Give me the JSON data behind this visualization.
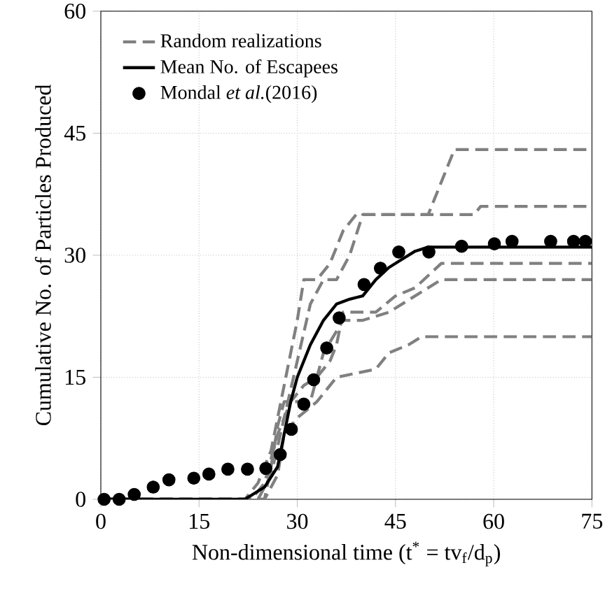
{
  "chart_data": {
    "type": "line",
    "xlabel": "Non-dimensional time (t$^{*}$ = tv$_{f}$/d$_{p}$)",
    "ylabel": "Cumulative No. of Particles Produced",
    "xlim": [
      0,
      75
    ],
    "ylim": [
      0,
      60
    ],
    "xticks": [
      0,
      15,
      30,
      45,
      60,
      75
    ],
    "yticks": [
      0,
      15,
      30,
      45,
      60
    ],
    "grid": true,
    "legend": "top left",
    "series": [
      {
        "name": "Random realizations",
        "color": "#808080",
        "line_style": "dashed",
        "marker": "none",
        "x": [
          0,
          22,
          24,
          26,
          28,
          30,
          31,
          33,
          35,
          37,
          39,
          50,
          52,
          54,
          75
        ],
        "values": [
          0,
          0,
          2,
          6,
          14,
          22,
          27,
          27,
          29,
          33,
          35,
          35,
          39,
          43,
          43
        ]
      },
      {
        "color": "#808080",
        "line_style": "dashed",
        "marker": "none",
        "x": [
          0,
          24,
          26,
          28,
          30,
          32,
          34,
          36,
          38,
          40,
          57,
          58,
          75
        ],
        "values": [
          0,
          0,
          3,
          10,
          17,
          24,
          27,
          27,
          30,
          35,
          35,
          36,
          36
        ]
      },
      {
        "color": "#808080",
        "line_style": "dashed",
        "marker": "none",
        "x": [
          0,
          23,
          25,
          27,
          29,
          31,
          33,
          35,
          36,
          37,
          42,
          45,
          48,
          52,
          75
        ],
        "values": [
          0,
          0,
          2,
          8,
          12,
          14,
          15,
          17,
          19,
          23,
          23,
          25,
          26,
          29,
          29
        ]
      },
      {
        "color": "#808080",
        "line_style": "dashed",
        "marker": "none",
        "x": [
          0,
          25,
          26,
          27,
          28,
          32,
          34,
          37,
          40,
          44,
          48,
          52,
          75
        ],
        "values": [
          0,
          0,
          4,
          9,
          12,
          12,
          18,
          22,
          22,
          23,
          25,
          27,
          27
        ]
      },
      {
        "color": "#808080",
        "line_style": "dashed",
        "marker": "none",
        "x": [
          0,
          25,
          27,
          28,
          30,
          33,
          36,
          42,
          44,
          47,
          49,
          75
        ],
        "values": [
          0,
          0,
          3,
          8,
          10,
          12,
          15,
          16,
          18,
          19,
          20,
          20
        ]
      },
      {
        "name": "Mean No. of Escapees",
        "color": "#000000",
        "line_style": "solid",
        "marker": "none",
        "x": [
          0,
          22,
          25,
          27,
          28,
          29,
          30,
          32,
          34,
          36,
          38,
          40,
          42,
          44,
          46,
          48,
          50,
          53,
          75
        ],
        "values": [
          0,
          0,
          1.5,
          4,
          8,
          12,
          15,
          19,
          22,
          24,
          24.6,
          25,
          27,
          28.5,
          29.5,
          30.5,
          31,
          31,
          31
        ]
      },
      {
        "type": "scatter",
        "name": "Mondal *et al.*(2016)",
        "color": "#000000",
        "marker": "circle",
        "x": [
          0.5,
          2.8,
          5.1,
          8.0,
          10.4,
          14.2,
          16.5,
          19.4,
          22.4,
          25.2,
          27.4,
          29.1,
          31.0,
          32.5,
          34.5,
          36.4,
          40.2,
          42.7,
          45.5,
          50.1,
          55.1,
          60.1,
          62.8,
          68.7,
          72.2,
          74.0
        ],
        "values": [
          0,
          0,
          0.6,
          1.5,
          2.4,
          2.6,
          3.1,
          3.7,
          3.7,
          3.8,
          5.5,
          8.6,
          11.7,
          14.7,
          18.6,
          22.3,
          26.4,
          28.4,
          30.4,
          30.4,
          31.1,
          31.4,
          31.7,
          31.7,
          31.7,
          31.7
        ]
      }
    ]
  }
}
